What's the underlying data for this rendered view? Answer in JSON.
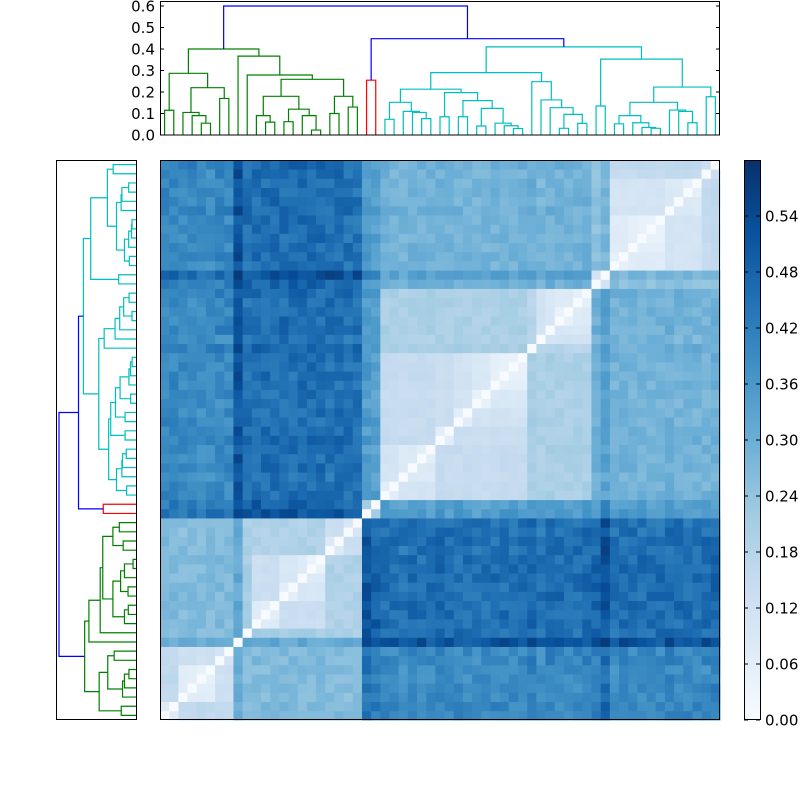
{
  "chart_data": {
    "type": "heatmap",
    "title": "",
    "n_leaves": 61,
    "leaf_order": "left-to-right on columns, bottom-to-top on rows",
    "linkage": [
      0.6,
      [
        0.4,
        [
          0.287,
          [
            0.115,
            0,
            1
          ],
          [
            0.22,
            [
              0.105,
              2,
              [
                0.09,
                3,
                [
                  0.055,
                  4,
                  5
                ]
              ]
            ],
            [
              0.17,
              6,
              7
            ]
          ]
        ],
        [
          0.367,
          8,
          [
            0.279,
            9,
            [
              0.259,
              [
                0.18,
                [
                  0.09,
                  10,
                  [
                    0.06,
                    11,
                    12
                  ]
                ],
                [
                  0.12,
                  [
                    0.062,
                    13,
                    14
                  ],
                  [
                    0.09,
                    15,
                    [
                      0.023,
                      16,
                      17
                    ]
                  ]
                ]
              ],
              [
                0.18,
                [
                  0.1,
                  18,
                  19
                ],
                [
                  0.13,
                  20,
                  21
                ]
              ]
            ]
          ]
        ]
      ],
      [
        0.448,
        [
          0.255,
          22,
          23
        ],
        [
          0.41,
          [
            0.29,
            [
              0.213,
              [
                0.152,
                [
                  0.073,
                  24,
                  25
                ],
                [
                  0.11,
                  26,
                  [
                    0.105,
                    27,
                    [
                      0.076,
                      28,
                      29
                    ]
                  ]
                ]
              ],
              [
                0.197,
                [
                  0.085,
                  30,
                  31
                ],
                [
                  0.16,
                  [
                    0.085,
                    32,
                    33
                  ],
                  [
                    0.124,
                    [
                      0.042,
                      34,
                      35
                    ],
                    [
                      0.055,
                      36,
                      [
                        0.043,
                        37,
                        [
                          0.03,
                          38,
                          39
                        ]
                      ]
                    ]
                  ]
                ]
              ]
            ],
            [
              0.248,
              40,
              [
                0.163,
                41,
                [
                  0.127,
                  42,
                  [
                    0.096,
                    [
                      0.031,
                      43,
                      44
                    ],
                    [
                      0.054,
                      45,
                      46
                    ]
                  ]
                ]
              ]
            ]
          ],
          [
            0.353,
            [
              0.135,
              47,
              48
            ],
            [
              0.223,
              [
                0.152,
                [
                  0.09,
                  [
                    0.052,
                    49,
                    50
                  ],
                  [
                    0.057,
                    51,
                    [
                      0.035,
                      52,
                      [
                        0.031,
                        53,
                        54
                      ]
                    ]
                  ]
                ],
                [
                  0.116,
                  55,
                  [
                    0.11,
                    56,
                    [
                      0.057,
                      57,
                      58
                    ]
                  ]
                ]
              ],
              [
                0.178,
                59,
                60
              ]
            ]
          ]
        ]
      ]
    ],
    "color_threshold": 0.42,
    "cluster_colors": [
      "#008000",
      "#ff0000",
      "#00bfbf"
    ],
    "above_threshold_color": "#0000ff",
    "value_model": {
      "scale": 0.75,
      "exponent": 1.2,
      "floor": 0.03,
      "noise": 0.09,
      "seed": 7
    },
    "leaf_weights": [
      -0.1,
      -0.1,
      -0.12,
      -0.12,
      -0.12,
      -0.12,
      -0.1,
      -0.1,
      0.2,
      0.04,
      0.05,
      0.05,
      0.06,
      0.06,
      0.05,
      0.06,
      0.05,
      0.05,
      0.04,
      0.05,
      0.03,
      0.03,
      0.12,
      0.08,
      0,
      0,
      -0.02,
      0,
      0,
      0,
      0.02,
      0,
      0,
      0,
      -0.02,
      -0.02,
      0,
      0,
      0,
      0,
      0.05,
      -0.03,
      0.02,
      0,
      0,
      0,
      0.02,
      0.04,
      0.17,
      0,
      0,
      0,
      0,
      0,
      0,
      0.02,
      0,
      0,
      0,
      0,
      0.04
    ],
    "vmin": 0.0,
    "vmax": 0.6,
    "colormap": [
      "#f7fbff",
      "#deebf7",
      "#c6dbef",
      "#9ecae1",
      "#6baed6",
      "#4292c6",
      "#2171b5",
      "#08519c",
      "#08306b"
    ],
    "top_dendrogram": {
      "ylim": [
        0,
        0.6
      ],
      "yticks": [
        "0.0",
        "0.1",
        "0.2",
        "0.3",
        "0.4",
        "0.5",
        "0.6"
      ]
    },
    "colorbar": {
      "ticks": [
        "0.00",
        "0.06",
        "0.12",
        "0.18",
        "0.24",
        "0.30",
        "0.36",
        "0.42",
        "0.48",
        "0.54"
      ]
    }
  }
}
